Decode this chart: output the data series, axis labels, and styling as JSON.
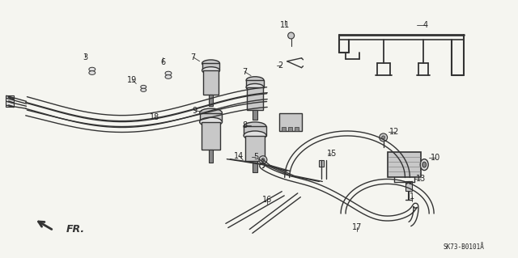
{
  "background_color": "#f5f5f0",
  "line_color": "#333333",
  "text_color": "#222222",
  "diagram_code_text": "SK73-B0101Å",
  "figsize": [
    6.4,
    3.19
  ],
  "dpi": 100,
  "gray_fill": "#c8c8c8",
  "dark_gray": "#888888",
  "light_gray": "#e0e0e0"
}
